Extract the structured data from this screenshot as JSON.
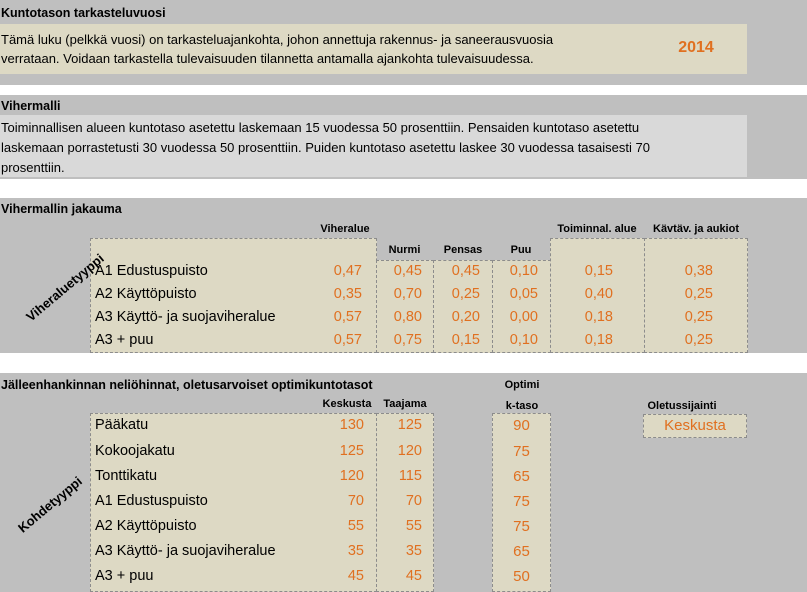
{
  "section1": {
    "title": "Kuntotason tarkasteluvuosi",
    "text_line1": "Tämä luku (pelkkä vuosi) on tarkasteluajankohta, johon annettuja rakennus- ja saneerausvuosia",
    "text_line2": "verrataan. Voidaan tarkastella tulevaisuuden tilannetta antamalla ajankohta tulevaisuudessa.",
    "year": "2014"
  },
  "section2": {
    "title": "Vihermalli",
    "text_line1": "Toiminnallisen alueen kuntotaso asetettu laskemaan 15 vuodessa 50 prosenttiin. Pensaiden kuntotaso asetettu",
    "text_line2": "laskemaan porrastetusti 30 vuodessa 50 prosenttiin. Puiden kuntotaso asetettu laskee 30 vuodessa tasaisesti 70",
    "text_line3": "prosenttiin."
  },
  "section3": {
    "title": "Vihermallin jakauma",
    "side_label": "Viheraluetyyppi",
    "headers": {
      "viheralue": "Viheralue",
      "nurmi": "Nurmi",
      "pensas": "Pensas",
      "puu": "Puu",
      "toiminnal": "Toiminnal. alue",
      "kaytav": "Kävtäv. ja aukiot"
    },
    "rows": [
      {
        "label": "A1 Edustuspuisto",
        "viheralue": "0,47",
        "nurmi": "0,45",
        "pensas": "0,45",
        "puu": "0,10",
        "toiminnal": "0,15",
        "kaytav": "0,38"
      },
      {
        "label": "A2 Käyttöpuisto",
        "viheralue": "0,35",
        "nurmi": "0,70",
        "pensas": "0,25",
        "puu": "0,05",
        "toiminnal": "0,40",
        "kaytav": "0,25"
      },
      {
        "label": "A3 Käyttö- ja suojaviheralue",
        "viheralue": "0,57",
        "nurmi": "0,80",
        "pensas": "0,20",
        "puu": "0,00",
        "toiminnal": "0,18",
        "kaytav": "0,25"
      },
      {
        "label": "A3 + puu",
        "viheralue": "0,57",
        "nurmi": "0,75",
        "pensas": "0,15",
        "puu": "0,10",
        "toiminnal": "0,18",
        "kaytav": "0,25"
      }
    ]
  },
  "section4": {
    "title": "Jälleenhankinnan neliöhinnat, oletusarvoiset optimikuntotasot",
    "side_label": "Kohdetyyppi",
    "headers": {
      "keskusta": "Keskusta",
      "taajama": "Taajama",
      "optimi1": "Optimi",
      "optimi2": "k-taso",
      "oletus": "Oletussijainti"
    },
    "default_location": "Keskusta",
    "rows": [
      {
        "label": "Pääkatu",
        "keskusta": "130",
        "taajama": "125",
        "optimi": "90"
      },
      {
        "label": "Kokoojakatu",
        "keskusta": "125",
        "taajama": "120",
        "optimi": "75"
      },
      {
        "label": "Tonttikatu",
        "keskusta": "120",
        "taajama": "115",
        "optimi": "65"
      },
      {
        "label": "A1 Edustuspuisto",
        "keskusta": "70",
        "taajama": "70",
        "optimi": "75"
      },
      {
        "label": "A2 Käyttöpuisto",
        "keskusta": "55",
        "taajama": "55",
        "optimi": "75"
      },
      {
        "label": "A3 Käyttö- ja suojaviheralue",
        "keskusta": "35",
        "taajama": "35",
        "optimi": "65"
      },
      {
        "label": "A3 + puu",
        "keskusta": "45",
        "taajama": "45",
        "optimi": "50"
      }
    ]
  }
}
